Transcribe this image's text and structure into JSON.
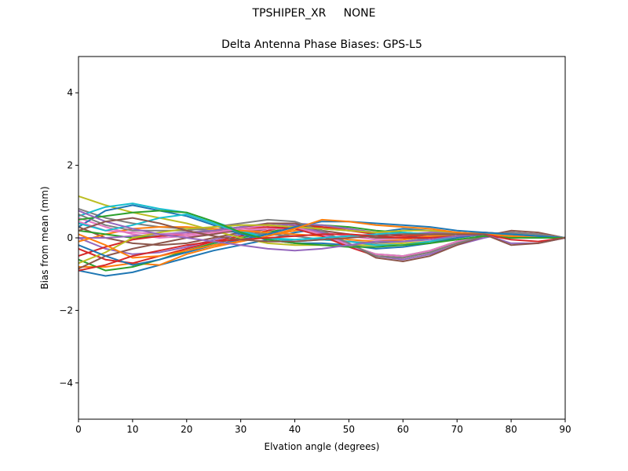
{
  "figure": {
    "suptitle": "TPSHIPER_XR     NONE"
  },
  "chart_data": {
    "type": "line",
    "title": "Delta Antenna Phase Biases: GPS-L5",
    "xlabel": "Elvation angle (degrees)",
    "ylabel": "Bias from mean (mm)",
    "xlim": [
      0,
      90
    ],
    "ylim": [
      -5,
      5
    ],
    "xticks": [
      0,
      10,
      20,
      30,
      40,
      50,
      60,
      70,
      80,
      90
    ],
    "yticks": [
      -4,
      -2,
      0,
      2,
      4
    ],
    "xtick_labels": [
      "0",
      "10",
      "20",
      "30",
      "40",
      "50",
      "60",
      "70",
      "80",
      "90"
    ],
    "ytick_labels": [
      "−4",
      "−2",
      "0",
      "2",
      "4"
    ],
    "grid": false,
    "legend": "none",
    "x": [
      0,
      5,
      10,
      15,
      20,
      25,
      30,
      35,
      40,
      45,
      50,
      55,
      60,
      65,
      70,
      75,
      80,
      85,
      90
    ],
    "colors": [
      "#1f77b4",
      "#ff7f0e",
      "#2ca02c",
      "#d62728",
      "#9467bd",
      "#8c564b",
      "#e377c2",
      "#7f7f7f",
      "#bcbd22",
      "#17becf"
    ],
    "series": [
      {
        "values": [
          -0.9,
          -1.05,
          -0.95,
          -0.75,
          -0.55,
          -0.35,
          -0.2,
          -0.05,
          0.15,
          0.25,
          0.2,
          0.15,
          0.25,
          0.2,
          0.15,
          0.1,
          0.05,
          0.05,
          0.0
        ]
      },
      {
        "values": [
          -0.8,
          -0.8,
          -0.7,
          -0.75,
          -0.45,
          -0.25,
          -0.1,
          0.05,
          0.2,
          0.3,
          0.25,
          0.1,
          0.05,
          0.1,
          0.15,
          0.1,
          0.05,
          0.0,
          0.0
        ]
      },
      {
        "values": [
          -0.6,
          -0.9,
          -0.8,
          -0.6,
          -0.35,
          -0.15,
          0.0,
          0.15,
          0.3,
          0.35,
          0.3,
          0.2,
          0.15,
          0.1,
          0.1,
          0.05,
          0.0,
          0.0,
          0.0
        ]
      },
      {
        "values": [
          -0.3,
          -0.6,
          -0.7,
          -0.5,
          -0.3,
          -0.1,
          0.05,
          0.2,
          0.35,
          0.3,
          0.2,
          0.1,
          0.05,
          0.05,
          0.1,
          0.1,
          0.05,
          0.05,
          0.0
        ]
      },
      {
        "values": [
          0.0,
          -0.3,
          -0.45,
          -0.4,
          -0.25,
          -0.05,
          0.1,
          0.25,
          0.4,
          0.35,
          0.25,
          0.15,
          0.1,
          0.15,
          0.15,
          0.1,
          0.1,
          0.05,
          0.0
        ]
      },
      {
        "values": [
          0.3,
          0.0,
          -0.15,
          -0.2,
          -0.15,
          0.0,
          0.15,
          0.25,
          0.3,
          0.2,
          0.1,
          0.0,
          0.0,
          0.05,
          0.1,
          0.15,
          0.1,
          0.05,
          0.0
        ]
      },
      {
        "values": [
          0.55,
          0.3,
          0.1,
          0.0,
          0.05,
          0.1,
          0.2,
          0.25,
          0.25,
          0.15,
          0.05,
          -0.05,
          -0.05,
          0.05,
          0.1,
          0.1,
          0.05,
          0.05,
          0.0
        ]
      },
      {
        "values": [
          0.8,
          0.55,
          0.4,
          0.3,
          0.25,
          0.2,
          0.15,
          0.1,
          0.05,
          -0.05,
          -0.1,
          -0.15,
          -0.1,
          0.0,
          0.1,
          0.15,
          0.1,
          0.05,
          0.0
        ]
      },
      {
        "values": [
          1.15,
          0.9,
          0.7,
          0.55,
          0.4,
          0.2,
          0.0,
          -0.15,
          -0.2,
          -0.2,
          -0.2,
          -0.2,
          -0.15,
          -0.1,
          0.0,
          0.1,
          0.05,
          0.0,
          0.0
        ]
      },
      {
        "values": [
          0.6,
          0.85,
          0.95,
          0.8,
          0.7,
          0.45,
          0.2,
          0.0,
          -0.1,
          -0.05,
          -0.1,
          -0.2,
          -0.2,
          -0.1,
          0.05,
          0.1,
          0.15,
          0.1,
          0.0
        ]
      },
      {
        "values": [
          0.3,
          0.75,
          0.9,
          0.75,
          0.6,
          0.35,
          0.1,
          -0.05,
          -0.15,
          -0.15,
          -0.2,
          -0.3,
          -0.25,
          -0.15,
          0.0,
          0.1,
          0.1,
          0.05,
          0.0
        ]
      },
      {
        "values": [
          -0.1,
          0.1,
          0.25,
          0.3,
          0.3,
          0.25,
          0.2,
          0.15,
          0.1,
          0.05,
          -0.05,
          -0.1,
          -0.05,
          0.05,
          0.1,
          0.1,
          0.1,
          0.05,
          0.0
        ]
      },
      {
        "values": [
          0.2,
          0.1,
          0.0,
          0.05,
          0.1,
          0.2,
          0.3,
          0.35,
          0.3,
          0.1,
          -0.2,
          -0.45,
          -0.5,
          -0.35,
          -0.1,
          0.05,
          0.1,
          0.05,
          0.0
        ]
      },
      {
        "values": [
          -0.5,
          -0.25,
          -0.05,
          0.05,
          0.1,
          0.15,
          0.25,
          0.3,
          0.25,
          0.05,
          -0.25,
          -0.5,
          -0.55,
          -0.4,
          -0.15,
          0.05,
          0.15,
          0.1,
          0.0
        ]
      },
      {
        "values": [
          0.0,
          0.0,
          0.05,
          0.1,
          0.15,
          0.2,
          0.3,
          0.4,
          0.35,
          0.15,
          -0.2,
          -0.5,
          -0.6,
          -0.45,
          -0.2,
          0.0,
          0.15,
          0.1,
          0.0
        ]
      },
      {
        "values": [
          -0.85,
          -0.5,
          -0.3,
          -0.15,
          0.0,
          0.1,
          0.25,
          0.4,
          0.4,
          0.2,
          -0.15,
          -0.55,
          -0.65,
          -0.5,
          -0.2,
          0.05,
          0.2,
          0.15,
          0.0
        ]
      },
      {
        "values": [
          0.45,
          0.2,
          0.15,
          0.1,
          0.1,
          0.15,
          0.25,
          0.35,
          0.3,
          0.1,
          -0.2,
          -0.45,
          -0.5,
          -0.35,
          -0.1,
          0.05,
          0.15,
          0.1,
          0.0
        ]
      },
      {
        "values": [
          0.65,
          0.35,
          0.2,
          0.2,
          0.2,
          0.3,
          0.4,
          0.5,
          0.45,
          0.2,
          -0.15,
          -0.5,
          -0.55,
          -0.4,
          -0.15,
          0.05,
          0.15,
          0.1,
          0.0
        ]
      },
      {
        "values": [
          -0.7,
          -0.4,
          0.0,
          0.15,
          0.25,
          0.3,
          0.35,
          0.35,
          0.3,
          0.25,
          0.2,
          0.15,
          0.2,
          0.2,
          0.15,
          0.1,
          0.1,
          0.05,
          0.0
        ]
      },
      {
        "values": [
          0.4,
          0.2,
          0.35,
          0.55,
          0.65,
          0.4,
          0.15,
          0.0,
          -0.05,
          0.0,
          0.05,
          0.1,
          0.15,
          0.1,
          0.1,
          0.1,
          0.1,
          0.05,
          0.0
        ]
      },
      {
        "values": [
          -0.2,
          -0.5,
          -0.75,
          -0.6,
          -0.4,
          -0.2,
          -0.05,
          0.1,
          0.3,
          0.45,
          0.45,
          0.4,
          0.35,
          0.3,
          0.2,
          0.15,
          0.1,
          0.05,
          0.0
        ]
      },
      {
        "values": [
          0.1,
          -0.2,
          -0.55,
          -0.5,
          -0.35,
          -0.2,
          -0.1,
          0.05,
          0.25,
          0.5,
          0.45,
          0.35,
          0.3,
          0.25,
          0.15,
          0.1,
          0.05,
          0.0,
          0.0
        ]
      },
      {
        "values": [
          0.5,
          0.6,
          0.7,
          0.75,
          0.7,
          0.45,
          0.15,
          -0.05,
          -0.15,
          -0.2,
          -0.25,
          -0.25,
          -0.2,
          -0.15,
          -0.05,
          0.05,
          0.0,
          0.0,
          0.0
        ]
      },
      {
        "values": [
          -0.9,
          -0.75,
          -0.5,
          -0.35,
          -0.2,
          -0.1,
          -0.05,
          0.0,
          0.05,
          0.1,
          0.1,
          0.05,
          0.0,
          0.0,
          0.05,
          0.1,
          -0.05,
          -0.1,
          0.0
        ]
      },
      {
        "values": [
          0.75,
          0.45,
          0.25,
          0.1,
          0.0,
          -0.1,
          -0.2,
          -0.3,
          -0.35,
          -0.3,
          -0.2,
          -0.1,
          -0.1,
          -0.05,
          0.05,
          0.1,
          -0.15,
          -0.15,
          0.0
        ]
      },
      {
        "values": [
          0.2,
          0.45,
          0.55,
          0.4,
          0.2,
          0.05,
          -0.05,
          -0.1,
          -0.1,
          -0.05,
          0.0,
          0.05,
          0.1,
          0.1,
          0.1,
          0.1,
          -0.2,
          -0.15,
          0.0
        ]
      }
    ]
  }
}
